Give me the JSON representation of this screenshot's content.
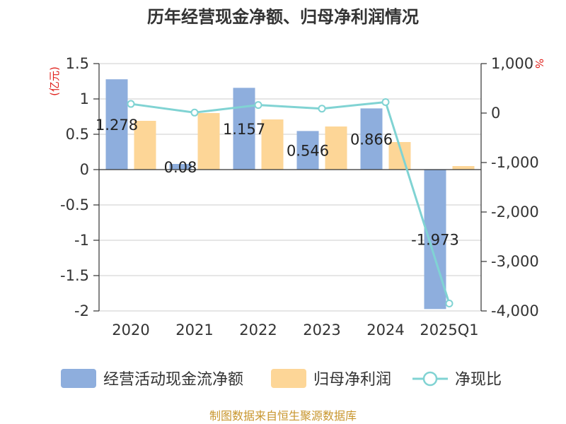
{
  "chart_data": {
    "type": "bar",
    "title": "历年经营现金净额、归母净利润情况",
    "categories": [
      "2020",
      "2021",
      "2022",
      "2023",
      "2024",
      "2025Q1"
    ],
    "left_axis": {
      "unit": "(亿元)",
      "ylim": [
        -2,
        1.5
      ],
      "ticks": [
        1.5,
        1,
        0.5,
        0,
        -0.5,
        -1,
        -1.5,
        -2
      ],
      "tick_labels": [
        "1.5",
        "1",
        "0.5",
        "0",
        "-0.5",
        "-1",
        "-1.5",
        "-2"
      ]
    },
    "right_axis": {
      "unit": "%",
      "ylim": [
        -4000,
        1000
      ],
      "ticks": [
        1000,
        0,
        -1000,
        -2000,
        -3000,
        -4000
      ],
      "tick_labels": [
        "1,000",
        "0",
        "-1,000",
        "-2,000",
        "-3,000",
        "-4,000"
      ]
    },
    "series": [
      {
        "name": "经营活动现金流净额",
        "kind": "bar",
        "color": "#8eaedd",
        "values": [
          1.278,
          0.08,
          1.157,
          0.546,
          0.866,
          -1.973
        ],
        "labels": [
          "1.278",
          "0.08",
          "1.157",
          "0.546",
          "0.866",
          "-1.973"
        ]
      },
      {
        "name": "归母净利润",
        "kind": "bar",
        "color": "#fdd697",
        "values": [
          0.69,
          0.8,
          0.71,
          0.61,
          0.39,
          0.05
        ]
      },
      {
        "name": "净现比",
        "kind": "line",
        "axis": "right",
        "color": "#80d3d3",
        "values": [
          185,
          10,
          163,
          90,
          222,
          -3850
        ]
      }
    ],
    "grid": true,
    "legend_position": "bottom"
  },
  "source": "制图数据来自恒生聚源数据库"
}
